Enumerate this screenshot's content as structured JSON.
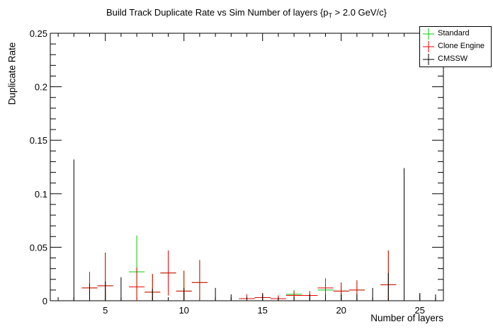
{
  "title_main": "Build Track Duplicate Rate vs Sim Number of layers {p",
  "title_sub": "T",
  "title_tail": " > 2.0 GeV/c}",
  "chart_data": {
    "type": "scatter",
    "title": "Build Track Duplicate Rate vs Sim Number of layers {p_T > 2.0 GeV/c}",
    "xlabel": "Number of layers",
    "ylabel": "Duplicate Rate",
    "xlim": [
      1.5,
      26.5
    ],
    "ylim": [
      0,
      0.25
    ],
    "x_ticks": [
      5,
      10,
      15,
      20,
      25
    ],
    "x_tick_labels": [
      "5",
      "10",
      "15",
      "20",
      "25"
    ],
    "y_ticks": [
      0,
      0.05,
      0.1,
      0.15,
      0.2,
      0.25
    ],
    "y_tick_labels": [
      "0",
      "0.05",
      "0.1",
      "0.15",
      "0.2",
      "0.25"
    ],
    "grid": false,
    "legend_position": "top-right",
    "series": [
      {
        "name": "Standard",
        "color": "#00cc00",
        "points": [
          {
            "x": 4,
            "y": 0.012,
            "err": 0.015
          },
          {
            "x": 5,
            "y": 0.014,
            "err": 0.031
          },
          {
            "x": 7,
            "y": 0.027,
            "err": 0.034
          },
          {
            "x": 8,
            "y": 0.008,
            "err": 0.017
          },
          {
            "x": 9,
            "y": 0.026,
            "err": 0.021
          },
          {
            "x": 10,
            "y": 0.009,
            "err": 0.019
          },
          {
            "x": 11,
            "y": 0.017,
            "err": 0.021
          },
          {
            "x": 14,
            "y": 0.002,
            "err": 0.004
          },
          {
            "x": 15,
            "y": 0.003,
            "err": 0.004
          },
          {
            "x": 16,
            "y": 0.002,
            "err": 0.003
          },
          {
            "x": 17,
            "y": 0.006,
            "err": 0.004
          },
          {
            "x": 18,
            "y": 0.005,
            "err": 0.004
          },
          {
            "x": 19,
            "y": 0.01,
            "err": 0.007
          },
          {
            "x": 20,
            "y": 0.009,
            "err": 0.008
          },
          {
            "x": 21,
            "y": 0.01,
            "err": 0.009
          },
          {
            "x": 23,
            "y": 0.015,
            "err": 0.032
          }
        ]
      },
      {
        "name": "Clone Engine",
        "color": "#ee0000",
        "points": [
          {
            "x": 4,
            "y": 0.012,
            "err": 0.015
          },
          {
            "x": 5,
            "y": 0.014,
            "err": 0.031
          },
          {
            "x": 7,
            "y": 0.013,
            "err": 0.018
          },
          {
            "x": 8,
            "y": 0.008,
            "err": 0.017
          },
          {
            "x": 9,
            "y": 0.026,
            "err": 0.021
          },
          {
            "x": 10,
            "y": 0.009,
            "err": 0.019
          },
          {
            "x": 11,
            "y": 0.017,
            "err": 0.021
          },
          {
            "x": 14,
            "y": 0.002,
            "err": 0.004
          },
          {
            "x": 15,
            "y": 0.003,
            "err": 0.004
          },
          {
            "x": 16,
            "y": 0.002,
            "err": 0.003
          },
          {
            "x": 17,
            "y": 0.005,
            "err": 0.004
          },
          {
            "x": 18,
            "y": 0.005,
            "err": 0.004
          },
          {
            "x": 19,
            "y": 0.012,
            "err": 0.009
          },
          {
            "x": 20,
            "y": 0.009,
            "err": 0.008
          },
          {
            "x": 21,
            "y": 0.01,
            "err": 0.009
          },
          {
            "x": 23,
            "y": 0.015,
            "err": 0.032
          }
        ]
      },
      {
        "name": "CMSSW",
        "color": "#000000",
        "points": [
          {
            "x": 3,
            "y": 0,
            "err": 0.132
          },
          {
            "x": 4,
            "y": 0,
            "err": 0.016
          },
          {
            "x": 5,
            "y": 0,
            "err": 0.018
          },
          {
            "x": 6,
            "y": 0,
            "err": 0.022
          },
          {
            "x": 8,
            "y": 0,
            "err": 0.011
          },
          {
            "x": 10,
            "y": 0,
            "err": 0.012
          },
          {
            "x": 12,
            "y": 0,
            "err": 0.012
          },
          {
            "x": 13,
            "y": 0,
            "err": 0.006
          },
          {
            "x": 14,
            "y": 0,
            "err": 0.004
          },
          {
            "x": 15,
            "y": 0,
            "err": 0.006
          },
          {
            "x": 16,
            "y": 0,
            "err": 0.003
          },
          {
            "x": 17,
            "y": 0,
            "err": 0.004
          },
          {
            "x": 18,
            "y": 0,
            "err": 0.006
          },
          {
            "x": 19,
            "y": 0,
            "err": 0.006
          },
          {
            "x": 20,
            "y": 0,
            "err": 0.006
          },
          {
            "x": 21,
            "y": 0,
            "err": 0.006
          },
          {
            "x": 22,
            "y": 0,
            "err": 0.012
          },
          {
            "x": 23,
            "y": 0,
            "err": 0.026
          },
          {
            "x": 24,
            "y": 0,
            "err": 0.124
          },
          {
            "x": 25,
            "y": 0,
            "err": 0.006
          },
          {
            "x": 26,
            "y": 0,
            "err": 0.006
          }
        ]
      }
    ]
  },
  "legend": {
    "items": [
      {
        "label": "Standard",
        "color": "#00cc00"
      },
      {
        "label": "Clone Engine",
        "color": "#ee0000"
      },
      {
        "label": "CMSSW",
        "color": "#000000"
      }
    ]
  }
}
